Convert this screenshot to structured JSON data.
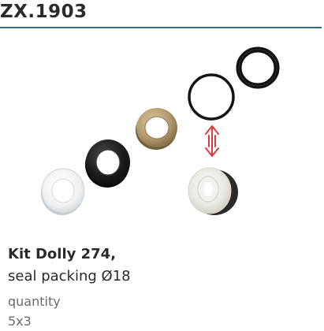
{
  "product": {
    "code": "ZX.1903",
    "name_line1": "Kit Dolly 274,",
    "name_line2": "seal packing Ø18",
    "quantity_label": "quantity",
    "quantity_value": "5x3"
  },
  "colors": {
    "divider": "#2f6f7d",
    "arrow": "#e0393b",
    "ring_white": "#f4f6f7",
    "ring_black": "#1c1c1c",
    "ring_bronze": "#b39b6d"
  },
  "icons": {
    "arrow": "double-headed-vertical-arrow-icon"
  }
}
